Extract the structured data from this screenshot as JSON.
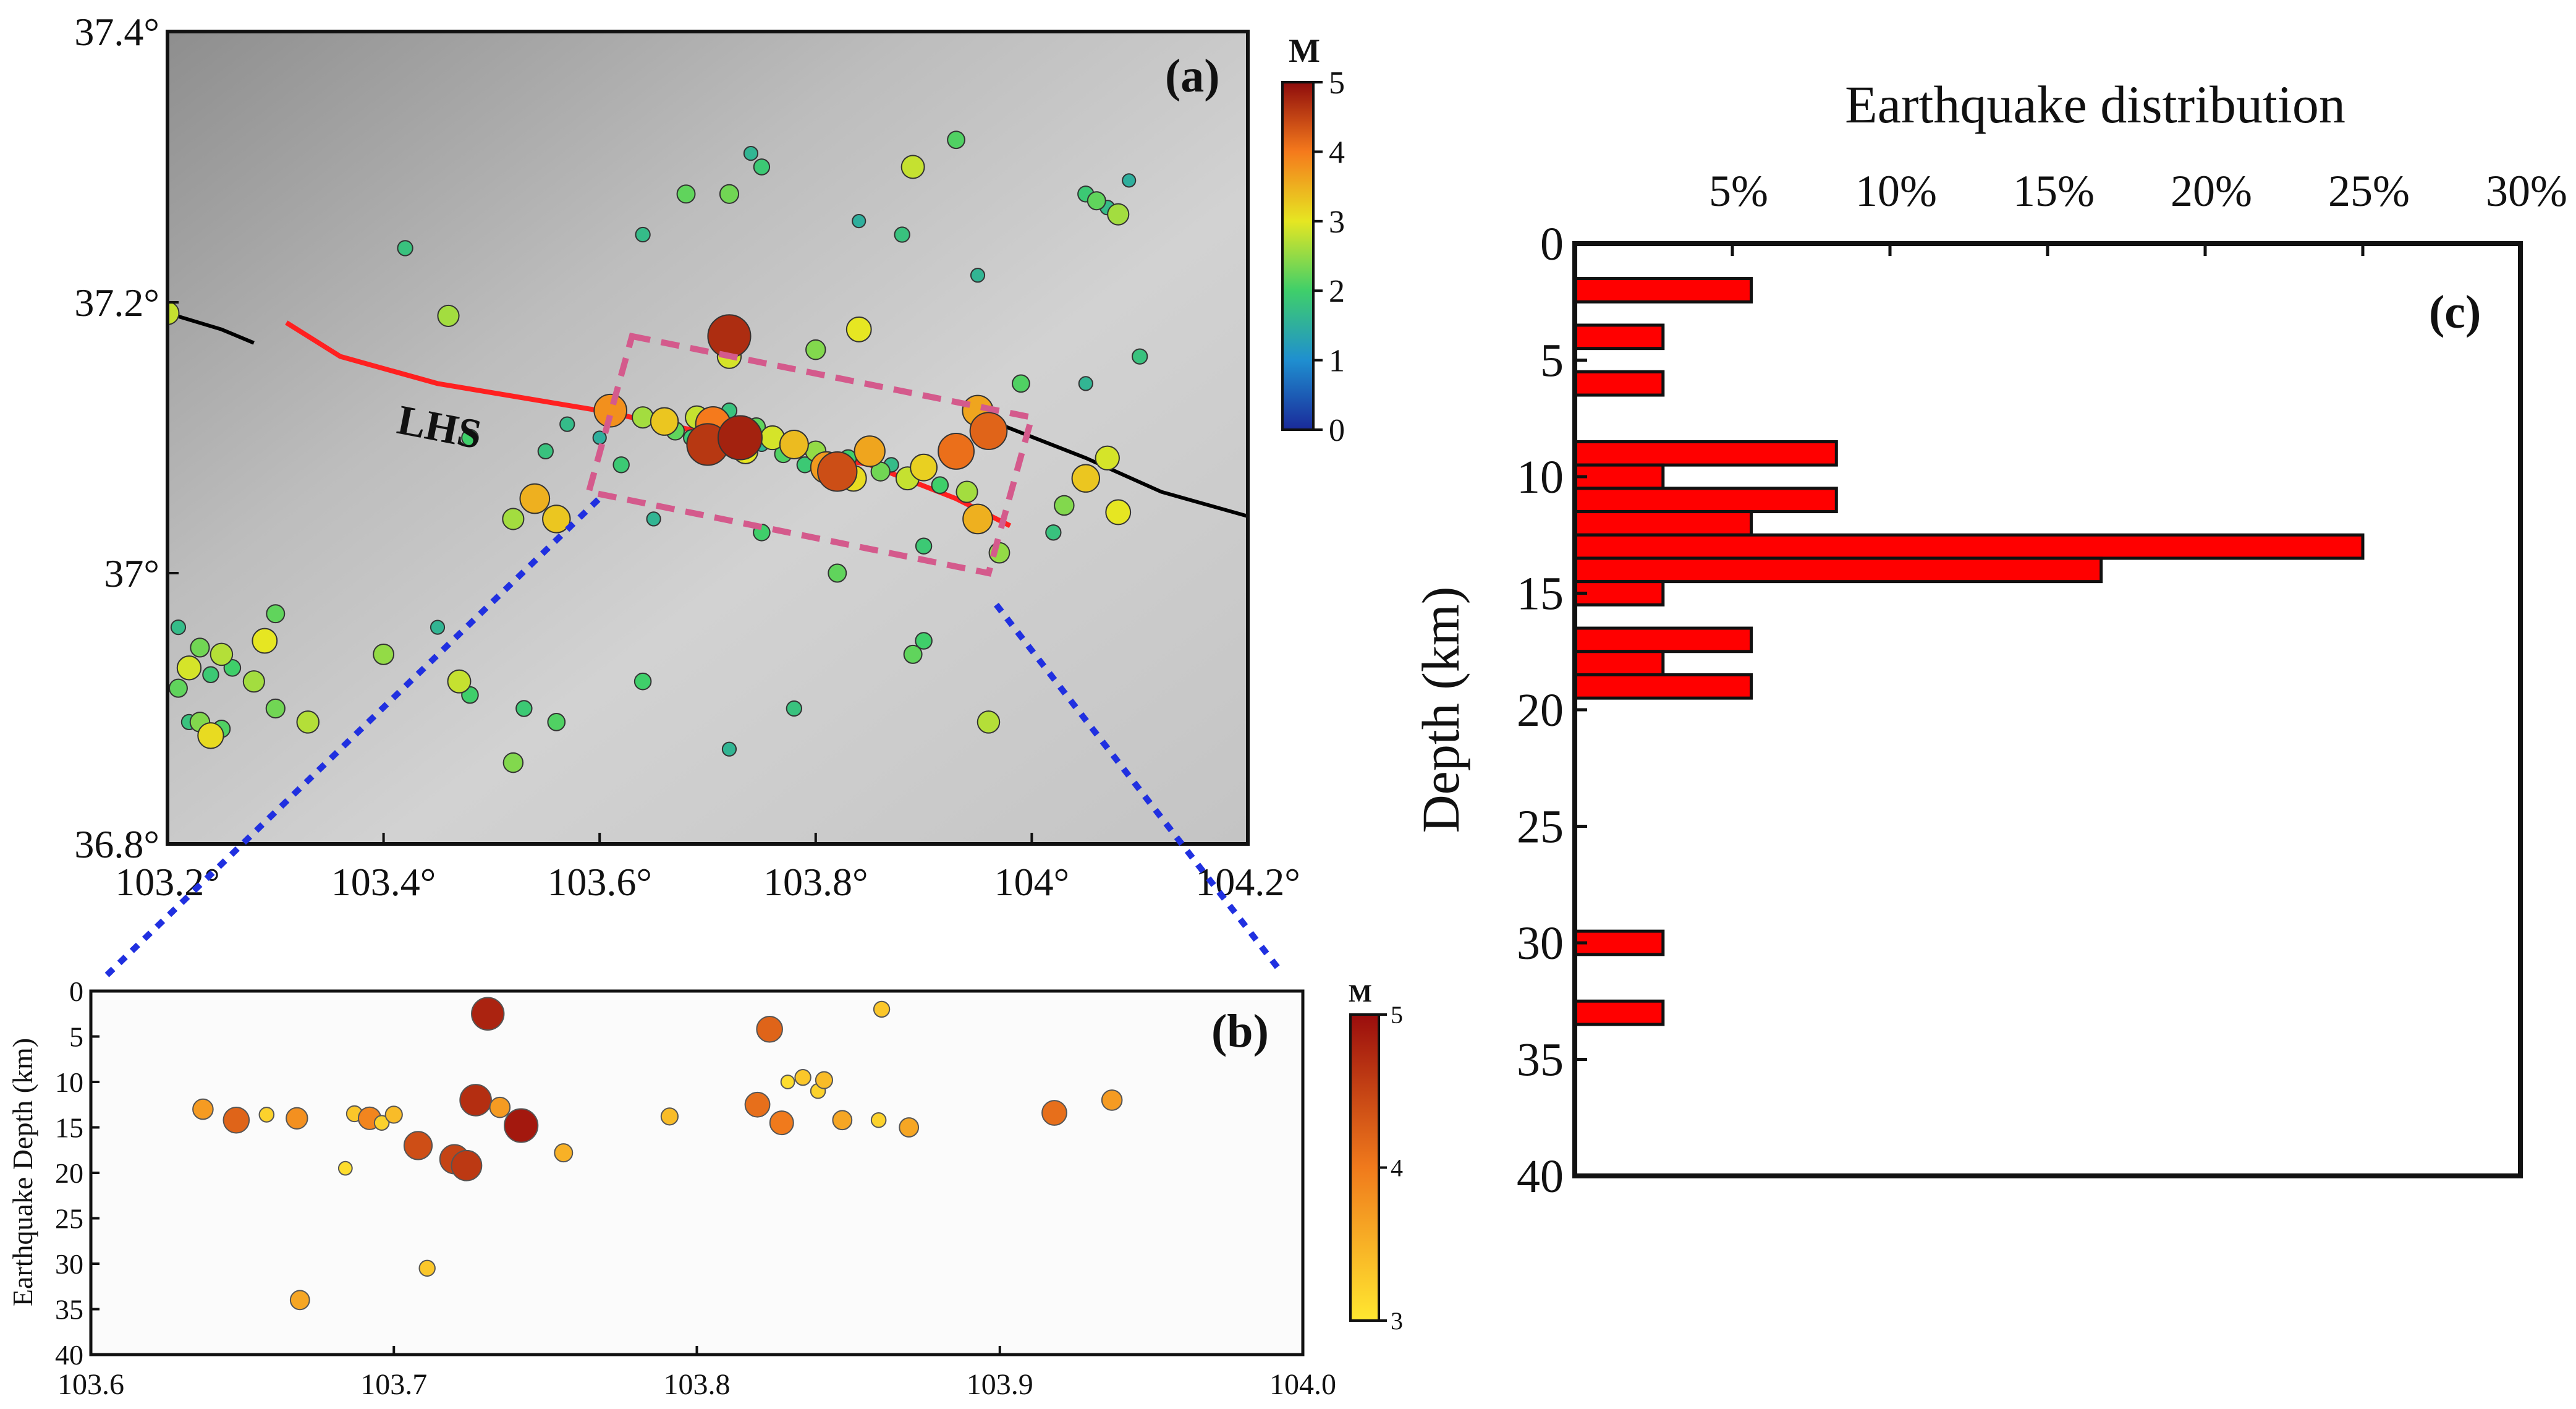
{
  "colors": {
    "eq_bar_fill": "#ff0000",
    "fault_main": "#ff2020",
    "fault_ext": "#000000",
    "box_outline": "#d45a8c",
    "zoom_lines": "#2030e0",
    "panel_a_bg": "#c2c2c2"
  },
  "chart_data": [
    {
      "panel": "a",
      "type": "scatter",
      "panel_label": "(a)",
      "xlim": [
        103.2,
        104.2
      ],
      "ylim": [
        36.8,
        37.4
      ],
      "xticks": [
        "103.2°",
        "103.4°",
        "103.6°",
        "103.8°",
        "104°",
        "104.2°"
      ],
      "xtick_values": [
        103.2,
        103.4,
        103.6,
        103.8,
        104.0,
        104.2
      ],
      "yticks": [
        "37.4°",
        "37.2°",
        "37°",
        "36.8°"
      ],
      "ytick_values": [
        37.4,
        37.2,
        37.0,
        36.8
      ],
      "fault_label": "LHS",
      "colorbar": {
        "label": "M",
        "min": 0,
        "max": 5,
        "ticks": [
          "5",
          "4",
          "3",
          "2",
          "1",
          "0"
        ]
      },
      "fault_red": [
        [
          103.31,
          37.185
        ],
        [
          103.36,
          37.16
        ],
        [
          103.45,
          37.14
        ],
        [
          103.6,
          37.12
        ],
        [
          103.72,
          37.1
        ],
        [
          103.85,
          37.08
        ],
        [
          103.93,
          37.055
        ],
        [
          103.98,
          37.035
        ]
      ],
      "fault_black_west": [
        [
          103.2,
          37.192
        ],
        [
          103.25,
          37.18
        ],
        [
          103.28,
          37.17
        ]
      ],
      "fault_black_east": [
        [
          103.97,
          37.11
        ],
        [
          104.05,
          37.085
        ],
        [
          104.12,
          37.06
        ],
        [
          104.2,
          37.042
        ]
      ],
      "rupture_box": [
        [
          103.63,
          37.175
        ],
        [
          104.0,
          37.115
        ],
        [
          103.96,
          37.0
        ],
        [
          103.59,
          37.06
        ]
      ],
      "events": [
        {
          "lon": 103.61,
          "lat": 37.12,
          "m": 3.8
        },
        {
          "lon": 103.64,
          "lat": 37.115,
          "m": 2.6
        },
        {
          "lon": 103.66,
          "lat": 37.112,
          "m": 3.3
        },
        {
          "lon": 103.67,
          "lat": 37.105,
          "m": 2.2
        },
        {
          "lon": 103.685,
          "lat": 37.1,
          "m": 1.9
        },
        {
          "lon": 103.69,
          "lat": 37.115,
          "m": 2.8
        },
        {
          "lon": 103.7,
          "lat": 37.095,
          "m": 4.6
        },
        {
          "lon": 103.705,
          "lat": 37.11,
          "m": 4.0
        },
        {
          "lon": 103.71,
          "lat": 37.102,
          "m": 2.4
        },
        {
          "lon": 103.72,
          "lat": 37.12,
          "m": 1.8
        },
        {
          "lon": 103.73,
          "lat": 37.1,
          "m": 4.8
        },
        {
          "lon": 103.735,
          "lat": 37.09,
          "m": 3.0
        },
        {
          "lon": 103.745,
          "lat": 37.108,
          "m": 2.2
        },
        {
          "lon": 103.75,
          "lat": 37.095,
          "m": 1.6
        },
        {
          "lon": 103.76,
          "lat": 37.1,
          "m": 2.9
        },
        {
          "lon": 103.77,
          "lat": 37.088,
          "m": 2.1
        },
        {
          "lon": 103.78,
          "lat": 37.095,
          "m": 3.4
        },
        {
          "lon": 103.79,
          "lat": 37.08,
          "m": 1.9
        },
        {
          "lon": 103.8,
          "lat": 37.09,
          "m": 2.5
        },
        {
          "lon": 103.81,
          "lat": 37.078,
          "m": 3.7
        },
        {
          "lon": 103.82,
          "lat": 37.075,
          "m": 4.4
        },
        {
          "lon": 103.83,
          "lat": 37.085,
          "m": 2.0
        },
        {
          "lon": 103.835,
          "lat": 37.07,
          "m": 3.1
        },
        {
          "lon": 103.85,
          "lat": 37.09,
          "m": 3.6
        },
        {
          "lon": 103.86,
          "lat": 37.075,
          "m": 2.3
        },
        {
          "lon": 103.87,
          "lat": 37.08,
          "m": 1.7
        },
        {
          "lon": 103.885,
          "lat": 37.07,
          "m": 2.8
        },
        {
          "lon": 103.9,
          "lat": 37.078,
          "m": 3.2
        },
        {
          "lon": 103.915,
          "lat": 37.065,
          "m": 2.0
        },
        {
          "lon": 103.93,
          "lat": 37.09,
          "m": 4.1
        },
        {
          "lon": 103.94,
          "lat": 37.06,
          "m": 2.6
        },
        {
          "lon": 103.95,
          "lat": 37.04,
          "m": 3.5
        },
        {
          "lon": 103.95,
          "lat": 37.12,
          "m": 3.6
        },
        {
          "lon": 103.96,
          "lat": 37.105,
          "m": 4.2
        },
        {
          "lon": 103.72,
          "lat": 37.175,
          "m": 4.7
        },
        {
          "lon": 103.72,
          "lat": 37.16,
          "m": 2.9
        },
        {
          "lon": 103.84,
          "lat": 37.18,
          "m": 3.0
        },
        {
          "lon": 103.8,
          "lat": 37.165,
          "m": 2.4
        },
        {
          "lon": 103.56,
          "lat": 37.04,
          "m": 3.3
        },
        {
          "lon": 103.54,
          "lat": 37.055,
          "m": 3.5
        },
        {
          "lon": 103.52,
          "lat": 37.04,
          "m": 2.6
        },
        {
          "lon": 103.55,
          "lat": 37.09,
          "m": 1.8
        },
        {
          "lon": 103.6,
          "lat": 37.1,
          "m": 1.5
        },
        {
          "lon": 103.62,
          "lat": 37.08,
          "m": 1.9
        },
        {
          "lon": 103.65,
          "lat": 37.04,
          "m": 1.6
        },
        {
          "lon": 103.75,
          "lat": 37.03,
          "m": 2.0
        },
        {
          "lon": 103.82,
          "lat": 37.0,
          "m": 2.2
        },
        {
          "lon": 103.9,
          "lat": 37.02,
          "m": 1.9
        },
        {
          "lon": 104.05,
          "lat": 37.07,
          "m": 3.3
        },
        {
          "lon": 104.07,
          "lat": 37.085,
          "m": 2.9
        },
        {
          "lon": 104.03,
          "lat": 37.05,
          "m": 2.4
        },
        {
          "lon": 104.08,
          "lat": 37.045,
          "m": 3.0
        },
        {
          "lon": 104.02,
          "lat": 37.03,
          "m": 1.8
        },
        {
          "lon": 103.97,
          "lat": 37.015,
          "m": 2.5
        },
        {
          "lon": 103.99,
          "lat": 37.14,
          "m": 2.1
        },
        {
          "lon": 104.05,
          "lat": 37.14,
          "m": 1.6
        },
        {
          "lon": 104.06,
          "lat": 37.275,
          "m": 2.2
        },
        {
          "lon": 104.07,
          "lat": 37.27,
          "m": 1.7
        },
        {
          "lon": 104.08,
          "lat": 37.265,
          "m": 2.6
        },
        {
          "lon": 104.05,
          "lat": 37.28,
          "m": 1.9
        },
        {
          "lon": 104.09,
          "lat": 37.29,
          "m": 1.5
        },
        {
          "lon": 104.1,
          "lat": 37.16,
          "m": 1.8
        },
        {
          "lon": 103.93,
          "lat": 37.32,
          "m": 2.1
        },
        {
          "lon": 103.89,
          "lat": 37.3,
          "m": 2.8
        },
        {
          "lon": 103.75,
          "lat": 37.3,
          "m": 1.9
        },
        {
          "lon": 103.74,
          "lat": 37.31,
          "m": 1.6
        },
        {
          "lon": 103.72,
          "lat": 37.28,
          "m": 2.3
        },
        {
          "lon": 103.84,
          "lat": 37.26,
          "m": 1.5
        },
        {
          "lon": 103.88,
          "lat": 37.25,
          "m": 1.8
        },
        {
          "lon": 103.95,
          "lat": 37.22,
          "m": 1.6
        },
        {
          "lon": 103.64,
          "lat": 37.25,
          "m": 1.7
        },
        {
          "lon": 103.68,
          "lat": 37.28,
          "m": 2.2
        },
        {
          "lon": 103.46,
          "lat": 37.19,
          "m": 2.6
        },
        {
          "lon": 103.42,
          "lat": 37.24,
          "m": 1.8
        },
        {
          "lon": 103.48,
          "lat": 37.1,
          "m": 2.0
        },
        {
          "lon": 103.57,
          "lat": 37.11,
          "m": 1.7
        },
        {
          "lon": 103.2,
          "lat": 37.192,
          "m": 2.8
        },
        {
          "lon": 103.22,
          "lat": 36.93,
          "m": 2.9
        },
        {
          "lon": 103.23,
          "lat": 36.945,
          "m": 2.3
        },
        {
          "lon": 103.24,
          "lat": 36.925,
          "m": 1.9
        },
        {
          "lon": 103.25,
          "lat": 36.94,
          "m": 2.7
        },
        {
          "lon": 103.21,
          "lat": 36.915,
          "m": 2.2
        },
        {
          "lon": 103.26,
          "lat": 36.93,
          "m": 2.0
        },
        {
          "lon": 103.28,
          "lat": 36.92,
          "m": 2.6
        },
        {
          "lon": 103.29,
          "lat": 36.95,
          "m": 3.0
        },
        {
          "lon": 103.23,
          "lat": 36.89,
          "m": 2.4
        },
        {
          "lon": 103.25,
          "lat": 36.885,
          "m": 2.1
        },
        {
          "lon": 103.22,
          "lat": 36.89,
          "m": 1.8
        },
        {
          "lon": 103.24,
          "lat": 36.88,
          "m": 3.1
        },
        {
          "lon": 103.3,
          "lat": 36.9,
          "m": 2.3
        },
        {
          "lon": 103.33,
          "lat": 36.89,
          "m": 2.7
        },
        {
          "lon": 103.21,
          "lat": 36.96,
          "m": 1.7
        },
        {
          "lon": 103.3,
          "lat": 36.97,
          "m": 2.2
        },
        {
          "lon": 103.47,
          "lat": 36.92,
          "m": 2.8
        },
        {
          "lon": 103.48,
          "lat": 36.91,
          "m": 2.0
        },
        {
          "lon": 103.53,
          "lat": 36.9,
          "m": 1.9
        },
        {
          "lon": 103.56,
          "lat": 36.89,
          "m": 2.1
        },
        {
          "lon": 103.52,
          "lat": 36.86,
          "m": 2.4
        },
        {
          "lon": 103.45,
          "lat": 36.96,
          "m": 1.6
        },
        {
          "lon": 103.4,
          "lat": 36.94,
          "m": 2.5
        },
        {
          "lon": 103.89,
          "lat": 36.94,
          "m": 2.2
        },
        {
          "lon": 103.9,
          "lat": 36.95,
          "m": 2.0
        },
        {
          "lon": 103.96,
          "lat": 36.89,
          "m": 2.7
        },
        {
          "lon": 103.72,
          "lat": 36.87,
          "m": 1.6
        },
        {
          "lon": 103.78,
          "lat": 36.9,
          "m": 1.8
        },
        {
          "lon": 103.64,
          "lat": 36.92,
          "m": 2.0
        }
      ]
    },
    {
      "panel": "b",
      "type": "scatter",
      "panel_label": "(b)",
      "ylabel": "Earthquake Depth (km)",
      "xlim": [
        103.6,
        104.0
      ],
      "ylim": [
        0,
        40
      ],
      "xticks": [
        "103.6",
        "103.7",
        "103.8",
        "103.9",
        "104.0"
      ],
      "xtick_values": [
        103.6,
        103.7,
        103.8,
        103.9,
        104.0
      ],
      "yticks": [
        "0",
        "5",
        "10",
        "15",
        "20",
        "25",
        "30",
        "35",
        "40"
      ],
      "colorbar": {
        "label": "M",
        "min": 3,
        "max": 5,
        "ticks": [
          "5",
          "4",
          "3"
        ]
      },
      "events": [
        {
          "lon": 103.637,
          "depth": 13,
          "m": 3.7
        },
        {
          "lon": 103.648,
          "depth": 14.2,
          "m": 4.2
        },
        {
          "lon": 103.658,
          "depth": 13.6,
          "m": 3.2
        },
        {
          "lon": 103.668,
          "depth": 14,
          "m": 3.8
        },
        {
          "lon": 103.669,
          "depth": 34,
          "m": 3.6
        },
        {
          "lon": 103.684,
          "depth": 19.5,
          "m": 3.1
        },
        {
          "lon": 103.687,
          "depth": 13.5,
          "m": 3.3
        },
        {
          "lon": 103.692,
          "depth": 14,
          "m": 3.9
        },
        {
          "lon": 103.696,
          "depth": 14.5,
          "m": 3.2
        },
        {
          "lon": 103.7,
          "depth": 13.6,
          "m": 3.4
        },
        {
          "lon": 103.708,
          "depth": 17,
          "m": 4.4
        },
        {
          "lon": 103.711,
          "depth": 30.5,
          "m": 3.3
        },
        {
          "lon": 103.72,
          "depth": 18.5,
          "m": 4.5
        },
        {
          "lon": 103.724,
          "depth": 19.2,
          "m": 4.6
        },
        {
          "lon": 103.727,
          "depth": 12,
          "m": 4.7
        },
        {
          "lon": 103.731,
          "depth": 2.5,
          "m": 4.8
        },
        {
          "lon": 103.735,
          "depth": 12.8,
          "m": 3.7
        },
        {
          "lon": 103.742,
          "depth": 14.8,
          "m": 4.9
        },
        {
          "lon": 103.756,
          "depth": 17.8,
          "m": 3.5
        },
        {
          "lon": 103.791,
          "depth": 13.8,
          "m": 3.4
        },
        {
          "lon": 103.82,
          "depth": 12.5,
          "m": 4.1
        },
        {
          "lon": 103.824,
          "depth": 4.2,
          "m": 4.2
        },
        {
          "lon": 103.828,
          "depth": 14.5,
          "m": 4.0
        },
        {
          "lon": 103.83,
          "depth": 10,
          "m": 3.1
        },
        {
          "lon": 103.835,
          "depth": 9.5,
          "m": 3.3
        },
        {
          "lon": 103.84,
          "depth": 11,
          "m": 3.2
        },
        {
          "lon": 103.842,
          "depth": 9.8,
          "m": 3.4
        },
        {
          "lon": 103.848,
          "depth": 14.2,
          "m": 3.6
        },
        {
          "lon": 103.86,
          "depth": 14.2,
          "m": 3.2
        },
        {
          "lon": 103.861,
          "depth": 2,
          "m": 3.3
        },
        {
          "lon": 103.87,
          "depth": 15,
          "m": 3.6
        },
        {
          "lon": 103.918,
          "depth": 13.4,
          "m": 4.1
        },
        {
          "lon": 103.937,
          "depth": 12,
          "m": 3.7
        }
      ]
    },
    {
      "panel": "c",
      "type": "bar",
      "orientation": "horizontal",
      "panel_label": "(c)",
      "title": "Earthquake distribution",
      "ylabel": "Depth (km)",
      "xlim": [
        0,
        30
      ],
      "ylim": [
        0,
        40
      ],
      "xticks": [
        "5%",
        "10%",
        "15%",
        "20%",
        "25%",
        "30%"
      ],
      "xtick_values": [
        5,
        10,
        15,
        20,
        25,
        30
      ],
      "yticks": [
        "0",
        "5",
        "10",
        "15",
        "20",
        "25",
        "30",
        "35",
        "40"
      ],
      "bin_width_km": 1,
      "bins": [
        {
          "depth": 2,
          "value": 5.6
        },
        {
          "depth": 4,
          "value": 2.8
        },
        {
          "depth": 6,
          "value": 2.8
        },
        {
          "depth": 9,
          "value": 8.3
        },
        {
          "depth": 10,
          "value": 2.8
        },
        {
          "depth": 11,
          "value": 8.3
        },
        {
          "depth": 12,
          "value": 5.6
        },
        {
          "depth": 13,
          "value": 25.0
        },
        {
          "depth": 14,
          "value": 16.7
        },
        {
          "depth": 15,
          "value": 2.8
        },
        {
          "depth": 17,
          "value": 5.6
        },
        {
          "depth": 18,
          "value": 2.8
        },
        {
          "depth": 19,
          "value": 5.6
        },
        {
          "depth": 30,
          "value": 2.8
        },
        {
          "depth": 33,
          "value": 2.8
        }
      ]
    }
  ]
}
